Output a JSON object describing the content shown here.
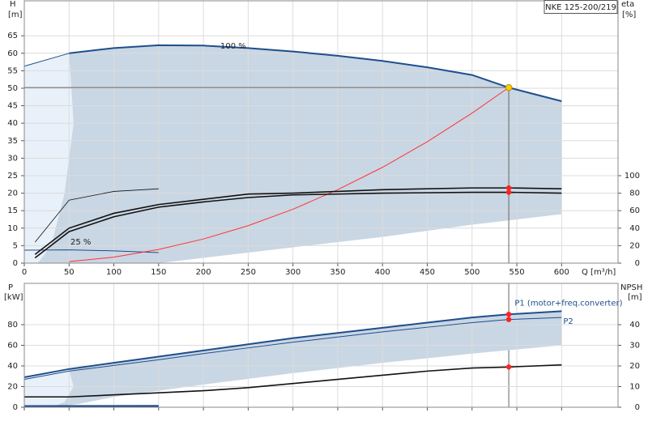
{
  "chart_data": [
    {
      "type": "line",
      "title": "NKE 125-200/219",
      "y_label": "H",
      "y_unit": "[m]",
      "y2_label": "eta",
      "y2_unit": "[%]",
      "x_label": "Q [m³/h]",
      "annotations": [
        "100 %",
        "25 %"
      ],
      "xlim": [
        0,
        663
      ],
      "xticks": [
        0,
        50,
        100,
        150,
        200,
        250,
        300,
        350,
        400,
        450,
        500,
        550,
        600
      ],
      "ylim": [
        0,
        75
      ],
      "yticks": [
        0,
        5,
        10,
        15,
        20,
        25,
        30,
        35,
        40,
        45,
        50,
        55,
        60,
        65
      ],
      "y2lim": [
        0,
        300
      ],
      "y2ticks": [
        0,
        20,
        40,
        60,
        80,
        100
      ],
      "grid": true,
      "regions": [
        {
          "color": "#e8f0f9",
          "x": [
            0,
            0,
            50,
            55,
            45,
            30,
            15
          ],
          "y": [
            0,
            56.3,
            60,
            40,
            20,
            5,
            0
          ]
        },
        {
          "color": "#c9d6e4",
          "x": [
            50,
            100,
            150,
            200,
            250,
            300,
            350,
            400,
            450,
            500,
            541,
            600,
            600,
            500,
            400,
            300,
            200,
            150,
            15,
            30,
            45,
            55
          ],
          "y": [
            60,
            61.5,
            62.3,
            62.2,
            61.5,
            60.5,
            59.3,
            57.8,
            56,
            53.8,
            50.2,
            46.3,
            14,
            11,
            7.5,
            4.5,
            1.5,
            0,
            0,
            5,
            20,
            40
          ]
        }
      ],
      "series": [
        {
          "color": "#1f4e8c",
          "width": 2,
          "x": [
            50,
            100,
            150,
            200,
            250,
            300,
            350,
            400,
            450,
            500,
            541,
            600
          ],
          "values": [
            60,
            61.5,
            62.3,
            62.2,
            61.5,
            60.5,
            59.3,
            57.8,
            56,
            53.8,
            50.2,
            46.3
          ]
        },
        {
          "color": "#1f4e8c",
          "width": 1,
          "x": [
            0,
            50
          ],
          "values": [
            56.3,
            60
          ]
        },
        {
          "color": "#1f4e8c",
          "width": 1,
          "x": [
            0,
            50,
            100,
            150
          ],
          "values": [
            3.7,
            3.8,
            3.5,
            3.0
          ]
        },
        {
          "color": "#ff3333",
          "width": 1,
          "x": [
            50,
            100,
            150,
            200,
            250,
            300,
            350,
            400,
            450,
            500,
            541
          ],
          "values": [
            0.43,
            1.7,
            3.9,
            6.9,
            10.7,
            15.4,
            21,
            27.4,
            34.7,
            42.9,
            50.2
          ]
        },
        {
          "color": "#111111",
          "width": 1.6,
          "axis": "y2",
          "x": [
            12,
            50,
            100,
            150,
            200,
            250,
            300,
            350,
            400,
            500,
            541,
            600
          ],
          "values": [
            10,
            40,
            57,
            67,
            73,
            79,
            80,
            82,
            84,
            86,
            86,
            85
          ]
        },
        {
          "color": "#111111",
          "width": 1.6,
          "axis": "y2",
          "x": [
            12,
            50,
            100,
            150,
            200,
            250,
            300,
            400,
            500,
            541,
            600
          ],
          "values": [
            6,
            36,
            53,
            64,
            70,
            75,
            78,
            80,
            81,
            81,
            80
          ]
        },
        {
          "color": "#111111",
          "width": 0.8,
          "axis": "y2",
          "x": [
            12,
            50,
            100,
            150
          ],
          "values": [
            24,
            72,
            82,
            85
          ]
        }
      ],
      "duty_point": {
        "x": 541,
        "y": 50.2,
        "color": "#ffcc00"
      },
      "markers": [
        {
          "x": 541,
          "y": 86,
          "axis": "y2",
          "color": "#ff2222"
        },
        {
          "x": 541,
          "y": 81,
          "axis": "y2",
          "color": "#ff2222"
        }
      ]
    },
    {
      "type": "line",
      "y_label": "P",
      "y_unit": "[kW]",
      "y2_label": "NPSH",
      "y2_unit": "[m]",
      "xlim": [
        0,
        663
      ],
      "ylim": [
        0,
        120
      ],
      "yticks": [
        0,
        20,
        40,
        60,
        80
      ],
      "y2lim": [
        0,
        60
      ],
      "y2ticks": [
        0,
        10,
        20,
        30,
        40
      ],
      "grid": true,
      "regions": [
        {
          "color": "#e8f0f9",
          "x": [
            0,
            0,
            50,
            55,
            45,
            30
          ],
          "y": [
            0,
            28,
            36,
            20,
            5,
            0
          ]
        },
        {
          "color": "#c9d6e4",
          "x": [
            50,
            100,
            150,
            200,
            250,
            300,
            350,
            400,
            450,
            500,
            541,
            600,
            600,
            500,
            400,
            300,
            200,
            100,
            60,
            30,
            45,
            55
          ],
          "y": [
            36,
            43,
            49,
            55,
            61,
            67,
            72,
            77,
            82,
            87,
            90,
            93,
            60,
            52,
            43,
            33,
            22,
            10,
            3,
            0,
            5,
            20
          ]
        }
      ],
      "series": [
        {
          "name": "P1 (motor+freq.converter)",
          "color": "#1f4e8c",
          "width": 2,
          "x": [
            0,
            50,
            100,
            150,
            200,
            250,
            300,
            350,
            400,
            450,
            500,
            541,
            600
          ],
          "values": [
            29,
            37,
            43,
            49,
            55,
            61,
            67,
            72,
            77,
            82,
            87,
            90,
            93
          ]
        },
        {
          "name": "P2",
          "color": "#1f4e8c",
          "width": 1,
          "x": [
            0,
            50,
            100,
            150,
            200,
            250,
            300,
            350,
            400,
            450,
            500,
            541,
            600
          ],
          "values": [
            27,
            35,
            40.5,
            46,
            52,
            57.5,
            63,
            68,
            73,
            77.5,
            82,
            85,
            87
          ]
        },
        {
          "color": "#111111",
          "width": 1.6,
          "axis": "y2",
          "x": [
            0,
            50,
            100,
            150,
            200,
            250,
            300,
            350,
            400,
            450,
            500,
            541,
            600
          ],
          "values": [
            5,
            5,
            6,
            7,
            8,
            9.5,
            11.5,
            13.5,
            15.5,
            17.5,
            19,
            19.5,
            20.5
          ]
        },
        {
          "color": "#1f4e8c",
          "width": 2.5,
          "x": [
            0,
            150
          ],
          "values": [
            1,
            1.2
          ]
        }
      ],
      "markers": [
        {
          "x": 541,
          "y": 90,
          "color": "#ff2222"
        },
        {
          "x": 541,
          "y": 85,
          "color": "#ff2222"
        },
        {
          "x": 541,
          "y": 19.5,
          "axis": "y2",
          "color": "#ff2222"
        }
      ]
    }
  ]
}
